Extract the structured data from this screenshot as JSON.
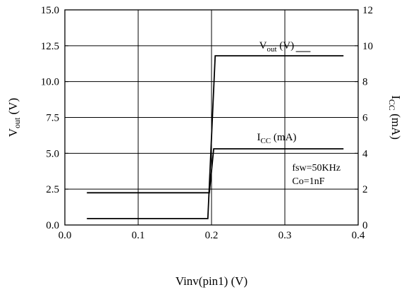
{
  "chart_data": {
    "type": "line",
    "xlabel": "Vinv(pin1) (V)",
    "ylabel_left": {
      "main": "V",
      "sub": "out",
      "unit": " (V)"
    },
    "ylabel_right": {
      "main": "I",
      "sub": "CC",
      "unit": " (mA)"
    },
    "xlim": [
      0.0,
      0.4
    ],
    "ylim_left": [
      0.0,
      15.0
    ],
    "ylim_right": [
      0,
      12
    ],
    "x_ticks": [
      0.0,
      0.1,
      0.2,
      0.3,
      0.4
    ],
    "x_tick_labels": [
      "0.0",
      "0.1",
      "0.2",
      "0.3",
      "0.4"
    ],
    "y_left_ticks": [
      0.0,
      2.5,
      5.0,
      7.5,
      10.0,
      12.5,
      15.0
    ],
    "y_left_tick_labels": [
      "0.0",
      "2.5",
      "5.0",
      "7.5",
      "10.0",
      "12.5",
      "15.0"
    ],
    "y_right_ticks": [
      0,
      2,
      4,
      6,
      8,
      10,
      12
    ],
    "y_right_tick_labels": [
      "0",
      "2",
      "4",
      "6",
      "8",
      "10",
      "12"
    ],
    "grid": true,
    "series": [
      {
        "name": "Vout (V)",
        "axis": "left",
        "x": [
          0.03,
          0.195,
          0.205,
          0.38
        ],
        "y": [
          0.45,
          0.45,
          11.8,
          11.8
        ]
      },
      {
        "name": "ICC (mA)",
        "axis": "right",
        "x": [
          0.03,
          0.197,
          0.203,
          0.38
        ],
        "y": [
          1.8,
          1.8,
          4.25,
          4.25
        ]
      }
    ],
    "annotations": {
      "vout_label": {
        "main": "V",
        "sub": "out",
        "unit": " (V)"
      },
      "icc_label": {
        "main": "I",
        "sub": "CC",
        "unit": " (mA)"
      },
      "conditions": [
        "fsw=50KHz",
        "Co=1nF"
      ]
    }
  }
}
